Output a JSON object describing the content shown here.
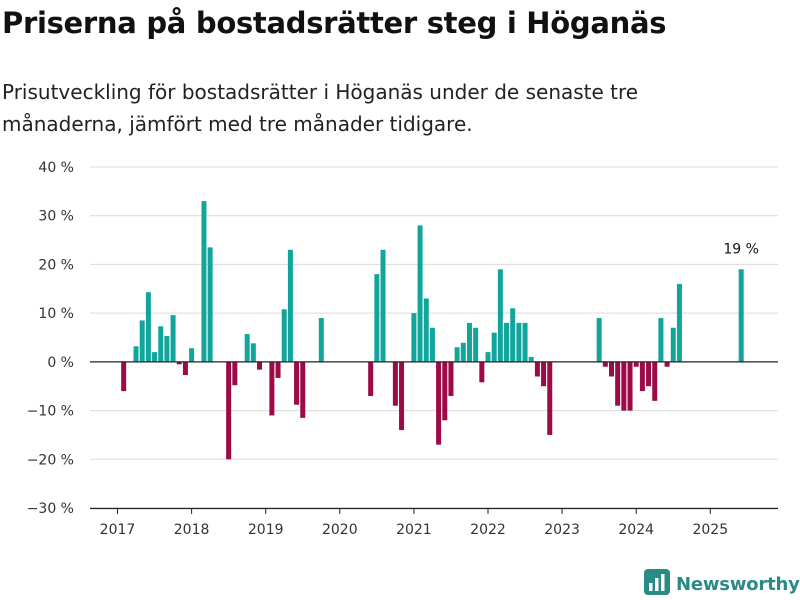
{
  "header": {
    "title": "Priserna på bostadsrätter steg i Höganäs",
    "subtitle": "Prisutveckling för bostadsrätter i Höganäs under de senaste tre månaderna, jämfört med tre månader tidigare."
  },
  "brand": {
    "name": "Newsworthy",
    "icon": "bar-chart-logo-icon",
    "color": "#2a8b84"
  },
  "colors": {
    "positive": "#12a59b",
    "negative": "#9c0a47",
    "grid": "#d9d9d9",
    "zero_line": "#222222"
  },
  "chart_data": {
    "type": "bar",
    "title": "Priserna på bostadsrätter steg i Höganäs",
    "ylim": [
      -30,
      40
    ],
    "yticks": [
      -30,
      -20,
      -10,
      0,
      10,
      20,
      30,
      40
    ],
    "ytick_labels": [
      "−30 %",
      "−20 %",
      "−10 %",
      "0 %",
      "10 %",
      "20 %",
      "30 %",
      "40 %"
    ],
    "xticks": [
      "2017",
      "2018",
      "2019",
      "2020",
      "2021",
      "2022",
      "2023",
      "2024",
      "2025"
    ],
    "grid": true,
    "annotation": {
      "label": "19 %",
      "x": "2025-06",
      "value": 19
    },
    "x": [
      "2017-01",
      "2017-02",
      "2017-03",
      "2017-04",
      "2017-05",
      "2017-06",
      "2017-07",
      "2017-08",
      "2017-09",
      "2017-10",
      "2017-11",
      "2017-12",
      "2018-01",
      "2018-02",
      "2018-03",
      "2018-04",
      "2018-05",
      "2018-06",
      "2018-07",
      "2018-08",
      "2018-09",
      "2018-10",
      "2018-11",
      "2018-12",
      "2019-01",
      "2019-02",
      "2019-03",
      "2019-04",
      "2019-05",
      "2019-06",
      "2019-07",
      "2019-08",
      "2019-09",
      "2019-10",
      "2019-11",
      "2019-12",
      "2020-01",
      "2020-02",
      "2020-03",
      "2020-04",
      "2020-05",
      "2020-06",
      "2020-07",
      "2020-08",
      "2020-09",
      "2020-10",
      "2020-11",
      "2020-12",
      "2021-01",
      "2021-02",
      "2021-03",
      "2021-04",
      "2021-05",
      "2021-06",
      "2021-07",
      "2021-08",
      "2021-09",
      "2021-10",
      "2021-11",
      "2021-12",
      "2022-01",
      "2022-02",
      "2022-03",
      "2022-04",
      "2022-05",
      "2022-06",
      "2022-07",
      "2022-08",
      "2022-09",
      "2022-10",
      "2022-11",
      "2022-12",
      "2023-01",
      "2023-02",
      "2023-03",
      "2023-04",
      "2023-05",
      "2023-06",
      "2023-07",
      "2023-08",
      "2023-09",
      "2023-10",
      "2023-11",
      "2023-12",
      "2024-01",
      "2024-02",
      "2024-03",
      "2024-04",
      "2024-05",
      "2024-06",
      "2024-07",
      "2024-08",
      "2024-09",
      "2024-10",
      "2024-11",
      "2024-12",
      "2025-01",
      "2025-02",
      "2025-03",
      "2025-04",
      "2025-05",
      "2025-06"
    ],
    "values": [
      null,
      -6,
      null,
      3.2,
      8.5,
      14.3,
      2,
      7.3,
      5.3,
      9.6,
      -0.5,
      -2.7,
      2.8,
      null,
      33,
      23.5,
      null,
      null,
      -20,
      -4.8,
      null,
      5.7,
      3.8,
      -1.6,
      null,
      -11,
      -3.3,
      10.8,
      23,
      -8.8,
      -11.5,
      null,
      null,
      9,
      null,
      null,
      null,
      null,
      null,
      null,
      null,
      -7,
      18,
      23,
      null,
      -9,
      -14,
      null,
      10,
      28,
      13,
      7,
      -17,
      -12,
      -7,
      3,
      3.9,
      8,
      7,
      -4.2,
      2,
      6,
      19,
      8,
      11,
      8,
      8,
      1,
      -3,
      -5,
      -15,
      null,
      null,
      null,
      null,
      null,
      null,
      null,
      9,
      -1,
      -3,
      -9,
      -10,
      -10,
      -1,
      -6,
      -5,
      -8,
      9,
      -1,
      7,
      16,
      null,
      null,
      null,
      null,
      null,
      null,
      null,
      null,
      null,
      19
    ]
  }
}
